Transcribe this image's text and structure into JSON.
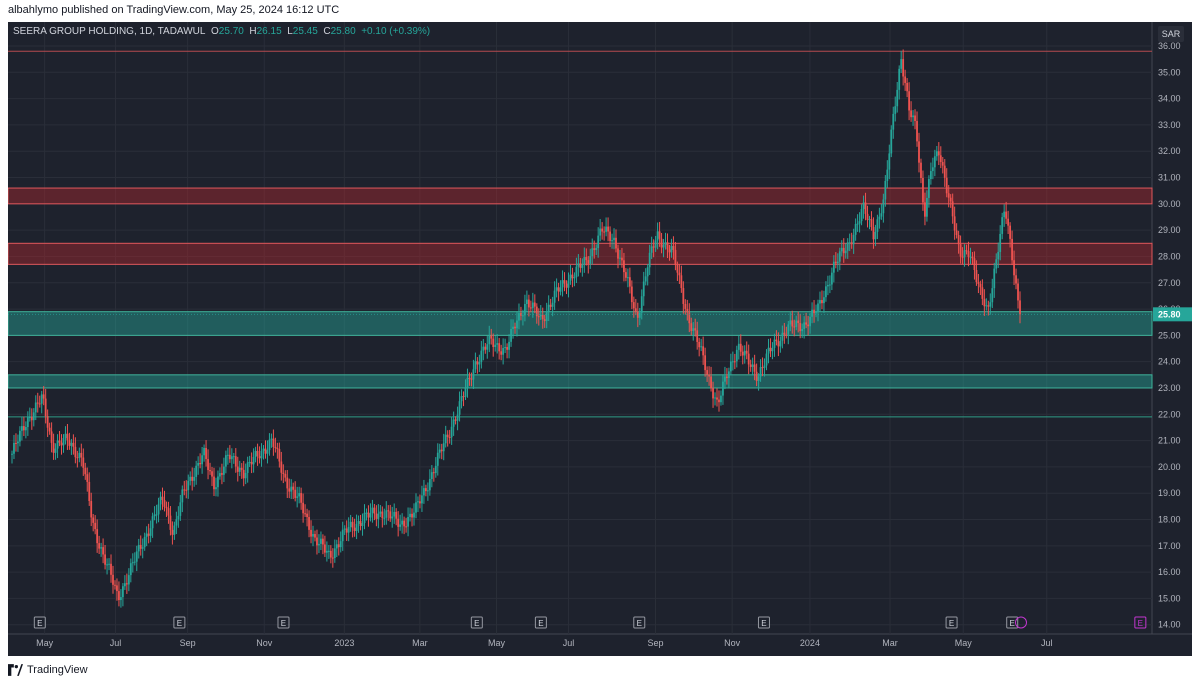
{
  "header": {
    "published": "albahlymo published on TradingView.com, May 25, 2024 16:12 UTC"
  },
  "legend": {
    "symbol": "SEERA GROUP HOLDING, 1D, TADAWUL",
    "open_label": "O",
    "open": "25.70",
    "high_label": "H",
    "high": "26.15",
    "low_label": "L",
    "low": "25.45",
    "close_label": "C",
    "close": "25.80",
    "change": "+0.10 (+0.39%)"
  },
  "currency": "SAR",
  "footer": {
    "brand": "TradingView",
    "logo_icon": "tradingview-logo-icon"
  },
  "chart_data": {
    "type": "candlestick",
    "colors": {
      "up": "#26a69a",
      "down": "#ef5350",
      "background": "#1e222d",
      "resistance_zone": "#b2282e",
      "support_zone": "#26a69a",
      "grid": "#2a2e39"
    },
    "grid": true,
    "y_axis": {
      "side": "right",
      "range": [
        13.8,
        36.0
      ],
      "ticks": [
        "14.00",
        "15.00",
        "16.00",
        "17.00",
        "18.00",
        "19.00",
        "20.00",
        "21.00",
        "22.00",
        "23.00",
        "24.00",
        "25.00",
        "26.00",
        "27.00",
        "28.00",
        "29.00",
        "30.00",
        "31.00",
        "32.00",
        "33.00",
        "34.00",
        "35.00",
        "36.00"
      ]
    },
    "x_axis": {
      "labels": [
        "May",
        "Jul",
        "Sep",
        "Nov",
        "2023",
        "Mar",
        "May",
        "Jul",
        "Sep",
        "Nov",
        "2024",
        "Mar",
        "May",
        "Jul"
      ]
    },
    "last_price": 25.8,
    "last_price_label": "25.80",
    "zones": [
      {
        "kind": "resistance",
        "low": 30.0,
        "high": 30.6
      },
      {
        "kind": "resistance",
        "low": 27.7,
        "high": 28.5
      },
      {
        "kind": "support",
        "low": 25.0,
        "high": 25.9
      },
      {
        "kind": "support",
        "low": 23.0,
        "high": 23.5
      }
    ],
    "horizontal_lines": [
      35.8,
      21.9
    ],
    "price_path": [
      [
        0,
        20.5
      ],
      [
        0.015,
        21.8
      ],
      [
        0.03,
        22.6
      ],
      [
        0.04,
        20.8
      ],
      [
        0.055,
        21.0
      ],
      [
        0.07,
        20.3
      ],
      [
        0.08,
        17.8
      ],
      [
        0.095,
        16.2
      ],
      [
        0.105,
        15.0
      ],
      [
        0.12,
        16.3
      ],
      [
        0.135,
        17.6
      ],
      [
        0.15,
        18.8
      ],
      [
        0.16,
        17.5
      ],
      [
        0.17,
        19.0
      ],
      [
        0.18,
        19.8
      ],
      [
        0.19,
        20.5
      ],
      [
        0.2,
        19.3
      ],
      [
        0.215,
        20.4
      ],
      [
        0.23,
        19.8
      ],
      [
        0.245,
        20.5
      ],
      [
        0.258,
        21.0
      ],
      [
        0.27,
        19.6
      ],
      [
        0.285,
        18.7
      ],
      [
        0.3,
        17.3
      ],
      [
        0.315,
        16.6
      ],
      [
        0.33,
        17.5
      ],
      [
        0.35,
        18.1
      ],
      [
        0.37,
        18.3
      ],
      [
        0.385,
        17.8
      ],
      [
        0.4,
        18.3
      ],
      [
        0.415,
        19.6
      ],
      [
        0.43,
        21.0
      ],
      [
        0.445,
        22.4
      ],
      [
        0.46,
        24.0
      ],
      [
        0.475,
        24.8
      ],
      [
        0.49,
        24.4
      ],
      [
        0.5,
        25.5
      ],
      [
        0.51,
        26.3
      ],
      [
        0.525,
        25.6
      ],
      [
        0.54,
        26.6
      ],
      [
        0.555,
        27.3
      ],
      [
        0.57,
        27.8
      ],
      [
        0.585,
        29.0
      ],
      [
        0.598,
        28.6
      ],
      [
        0.61,
        27.1
      ],
      [
        0.62,
        25.6
      ],
      [
        0.63,
        27.6
      ],
      [
        0.64,
        28.8
      ],
      [
        0.655,
        28.2
      ],
      [
        0.67,
        25.8
      ],
      [
        0.685,
        24.2
      ],
      [
        0.7,
        22.3
      ],
      [
        0.71,
        23.6
      ],
      [
        0.72,
        24.6
      ],
      [
        0.73,
        24.0
      ],
      [
        0.74,
        23.5
      ],
      [
        0.755,
        24.6
      ],
      [
        0.77,
        25.3
      ],
      [
        0.785,
        25.4
      ],
      [
        0.8,
        26.0
      ],
      [
        0.815,
        27.6
      ],
      [
        0.83,
        28.5
      ],
      [
        0.845,
        29.8
      ],
      [
        0.855,
        28.9
      ],
      [
        0.865,
        30.1
      ],
      [
        0.875,
        33.6
      ],
      [
        0.882,
        35.6
      ],
      [
        0.89,
        33.5
      ],
      [
        0.897,
        32.9
      ],
      [
        0.905,
        29.6
      ],
      [
        0.912,
        31.3
      ],
      [
        0.92,
        32.0
      ],
      [
        0.93,
        30.2
      ],
      [
        0.94,
        28.0
      ],
      [
        0.95,
        28.3
      ],
      [
        0.96,
        26.6
      ],
      [
        0.968,
        25.9
      ],
      [
        0.975,
        27.6
      ],
      [
        0.985,
        29.8
      ],
      [
        0.992,
        28.1
      ],
      [
        1.0,
        25.8
      ]
    ]
  }
}
